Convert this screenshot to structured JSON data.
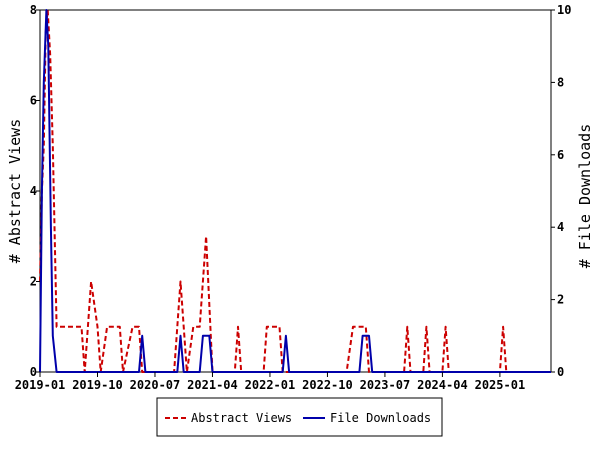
{
  "chart_data": {
    "type": "line",
    "y_left_label": "# Abstract Views",
    "y_right_label": "# File Downloads",
    "x_ticks": [
      "2019-01",
      "2019-10",
      "2020-07",
      "2021-04",
      "2022-01",
      "2022-10",
      "2023-07",
      "2024-04",
      "2025-01"
    ],
    "x_ticks_month_index": [
      0,
      9,
      18,
      27,
      36,
      45,
      54,
      63,
      72
    ],
    "x_range_month_index": [
      0,
      80
    ],
    "y_left_ticks": [
      0,
      2,
      4,
      6,
      8
    ],
    "y_left_range": [
      0,
      8
    ],
    "y_right_ticks": [
      0,
      2,
      4,
      6,
      8,
      10
    ],
    "y_right_range": [
      0,
      10
    ],
    "grid": false,
    "legend_position": "bottom",
    "series": [
      {
        "name": "Abstract Views",
        "axis": "left",
        "color": "#cc0000",
        "style": "dashed",
        "points": [
          [
            0,
            2
          ],
          [
            0.3,
            4
          ],
          [
            0.6,
            5
          ],
          [
            0.9,
            7.5
          ],
          [
            1.2,
            8
          ],
          [
            1.6,
            7
          ],
          [
            2,
            5
          ],
          [
            2.6,
            1
          ],
          [
            6.5,
            1
          ],
          [
            7,
            0
          ],
          [
            8,
            2
          ],
          [
            9,
            1
          ],
          [
            9.5,
            0
          ],
          [
            10.5,
            1
          ],
          [
            12.5,
            1
          ],
          [
            13,
            0
          ],
          [
            14.5,
            1
          ],
          [
            15.5,
            1
          ],
          [
            16,
            0
          ],
          [
            21,
            0
          ],
          [
            22,
            2
          ],
          [
            23,
            0
          ],
          [
            24,
            1
          ],
          [
            25,
            1
          ],
          [
            26,
            3
          ],
          [
            27,
            0
          ],
          [
            30.5,
            0
          ],
          [
            31,
            1
          ],
          [
            31.5,
            0
          ],
          [
            35,
            0
          ],
          [
            35.5,
            1
          ],
          [
            37.5,
            1
          ],
          [
            38,
            0
          ],
          [
            48,
            0
          ],
          [
            49,
            1
          ],
          [
            51,
            1
          ],
          [
            51.5,
            0
          ],
          [
            57,
            0
          ],
          [
            57.5,
            1
          ],
          [
            58,
            0
          ],
          [
            60,
            0
          ],
          [
            60.5,
            1
          ],
          [
            61,
            0
          ],
          [
            63,
            0
          ],
          [
            63.5,
            1
          ],
          [
            64,
            0
          ],
          [
            72,
            0
          ],
          [
            72.5,
            1
          ],
          [
            73,
            0
          ],
          [
            80,
            0
          ]
        ]
      },
      {
        "name": "File Downloads",
        "axis": "right",
        "color": "#0000aa",
        "style": "solid",
        "points": [
          [
            0,
            0
          ],
          [
            0.3,
            5
          ],
          [
            0.6,
            8
          ],
          [
            1,
            10
          ],
          [
            1.3,
            9
          ],
          [
            1.7,
            4
          ],
          [
            2,
            1
          ],
          [
            2.6,
            0
          ],
          [
            15.5,
            0
          ],
          [
            16,
            1
          ],
          [
            16.5,
            0
          ],
          [
            21.5,
            0
          ],
          [
            22,
            1
          ],
          [
            22.5,
            0
          ],
          [
            25,
            0
          ],
          [
            25.5,
            1
          ],
          [
            26.5,
            1
          ],
          [
            27,
            0
          ],
          [
            38,
            0
          ],
          [
            38.5,
            1
          ],
          [
            39,
            0
          ],
          [
            50,
            0
          ],
          [
            50.5,
            1
          ],
          [
            51.5,
            1
          ],
          [
            52,
            0
          ],
          [
            80,
            0
          ]
        ]
      }
    ]
  },
  "legend": {
    "abstract_views": "Abstract Views",
    "file_downloads": "File Downloads"
  }
}
